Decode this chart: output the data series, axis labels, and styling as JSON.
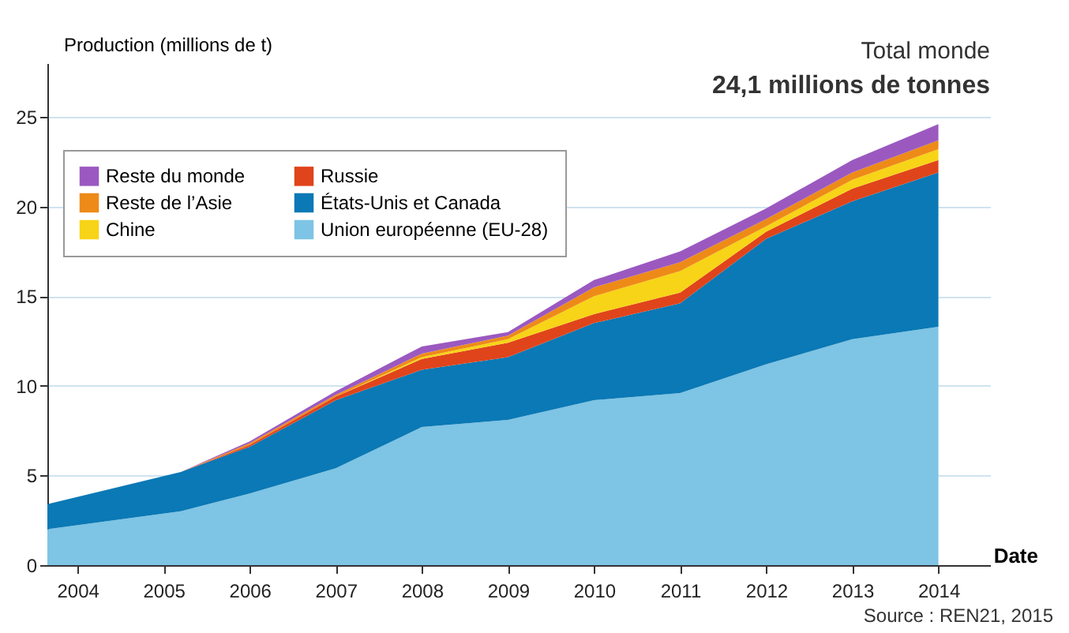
{
  "chart_data": {
    "type": "area",
    "stacked": true,
    "xlabel": "Date",
    "ylabel": "Production (millions de t)",
    "annotations": [
      "Total monde",
      "24,1 millions de tonnes",
      "Source : REN21, 2015"
    ],
    "x": [
      2003.65,
      2005.2,
      2006,
      2007,
      2008,
      2009,
      2010,
      2011,
      2012,
      2013,
      2014
    ],
    "xlim": [
      2003.65,
      2014.6
    ],
    "xticks": [
      2004,
      2005,
      2006,
      2007,
      2008,
      2009,
      2010,
      2011,
      2012,
      2013,
      2014
    ],
    "ylim": [
      0,
      28
    ],
    "yticks": [
      0,
      5,
      10,
      15,
      20,
      25
    ],
    "grid": "y",
    "legend": "top left",
    "series": [
      {
        "name": "Union européenne (EU-28)",
        "color": "#7ec4e4",
        "values": [
          2.0,
          3.0,
          4.0,
          5.4,
          7.7,
          8.1,
          9.2,
          9.6,
          11.2,
          12.6,
          13.3
        ]
      },
      {
        "name": "États-Unis et Canada",
        "color": "#0a79b5",
        "values": [
          1.4,
          2.2,
          2.6,
          3.8,
          3.2,
          3.5,
          4.3,
          5.0,
          7.0,
          7.7,
          8.6
        ]
      },
      {
        "name": "Russie",
        "color": "#e0441b",
        "values": [
          0,
          0,
          0.1,
          0.2,
          0.6,
          0.8,
          0.5,
          0.6,
          0.4,
          0.7,
          0.7
        ]
      },
      {
        "name": "Chine",
        "color": "#f7d417",
        "values": [
          0,
          0,
          0,
          0,
          0.1,
          0.2,
          1.0,
          1.2,
          0.3,
          0.5,
          0.6
        ]
      },
      {
        "name": "Reste de l’Asie",
        "color": "#ee8a18",
        "values": [
          0,
          0,
          0.1,
          0.1,
          0.2,
          0.2,
          0.5,
          0.5,
          0.4,
          0.4,
          0.5
        ]
      },
      {
        "name": "Reste du monde",
        "color": "#9b59c0",
        "values": [
          0,
          0,
          0.1,
          0.2,
          0.4,
          0.2,
          0.4,
          0.6,
          0.6,
          0.7,
          0.9
        ]
      }
    ]
  }
}
